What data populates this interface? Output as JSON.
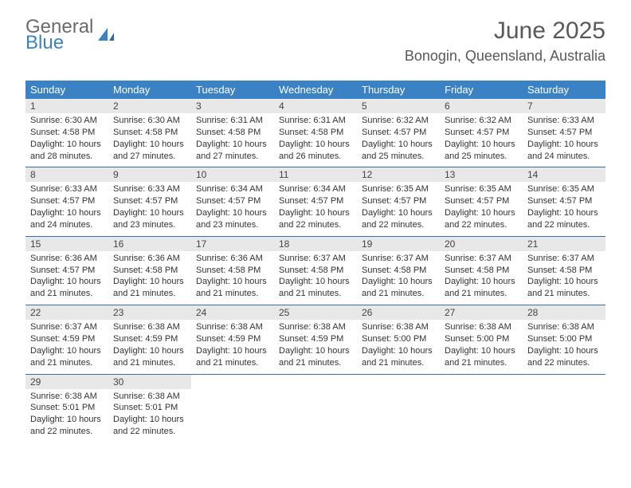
{
  "brand": {
    "part1": "General",
    "part2": "Blue"
  },
  "colors": {
    "header_bg": "#3b82c4",
    "header_text": "#ffffff",
    "daynum_bg": "#e8e8e8",
    "week_border": "#3b6ea5",
    "text": "#333333",
    "title_text": "#595959"
  },
  "title": {
    "month": "June 2025",
    "location": "Bonogin, Queensland, Australia"
  },
  "weekdays": [
    "Sunday",
    "Monday",
    "Tuesday",
    "Wednesday",
    "Thursday",
    "Friday",
    "Saturday"
  ],
  "days": [
    {
      "n": "1",
      "sr": "6:30 AM",
      "ss": "4:58 PM",
      "dl": "10 hours and 28 minutes."
    },
    {
      "n": "2",
      "sr": "6:30 AM",
      "ss": "4:58 PM",
      "dl": "10 hours and 27 minutes."
    },
    {
      "n": "3",
      "sr": "6:31 AM",
      "ss": "4:58 PM",
      "dl": "10 hours and 27 minutes."
    },
    {
      "n": "4",
      "sr": "6:31 AM",
      "ss": "4:58 PM",
      "dl": "10 hours and 26 minutes."
    },
    {
      "n": "5",
      "sr": "6:32 AM",
      "ss": "4:57 PM",
      "dl": "10 hours and 25 minutes."
    },
    {
      "n": "6",
      "sr": "6:32 AM",
      "ss": "4:57 PM",
      "dl": "10 hours and 25 minutes."
    },
    {
      "n": "7",
      "sr": "6:33 AM",
      "ss": "4:57 PM",
      "dl": "10 hours and 24 minutes."
    },
    {
      "n": "8",
      "sr": "6:33 AM",
      "ss": "4:57 PM",
      "dl": "10 hours and 24 minutes."
    },
    {
      "n": "9",
      "sr": "6:33 AM",
      "ss": "4:57 PM",
      "dl": "10 hours and 23 minutes."
    },
    {
      "n": "10",
      "sr": "6:34 AM",
      "ss": "4:57 PM",
      "dl": "10 hours and 23 minutes."
    },
    {
      "n": "11",
      "sr": "6:34 AM",
      "ss": "4:57 PM",
      "dl": "10 hours and 22 minutes."
    },
    {
      "n": "12",
      "sr": "6:35 AM",
      "ss": "4:57 PM",
      "dl": "10 hours and 22 minutes."
    },
    {
      "n": "13",
      "sr": "6:35 AM",
      "ss": "4:57 PM",
      "dl": "10 hours and 22 minutes."
    },
    {
      "n": "14",
      "sr": "6:35 AM",
      "ss": "4:57 PM",
      "dl": "10 hours and 22 minutes."
    },
    {
      "n": "15",
      "sr": "6:36 AM",
      "ss": "4:57 PM",
      "dl": "10 hours and 21 minutes."
    },
    {
      "n": "16",
      "sr": "6:36 AM",
      "ss": "4:58 PM",
      "dl": "10 hours and 21 minutes."
    },
    {
      "n": "17",
      "sr": "6:36 AM",
      "ss": "4:58 PM",
      "dl": "10 hours and 21 minutes."
    },
    {
      "n": "18",
      "sr": "6:37 AM",
      "ss": "4:58 PM",
      "dl": "10 hours and 21 minutes."
    },
    {
      "n": "19",
      "sr": "6:37 AM",
      "ss": "4:58 PM",
      "dl": "10 hours and 21 minutes."
    },
    {
      "n": "20",
      "sr": "6:37 AM",
      "ss": "4:58 PM",
      "dl": "10 hours and 21 minutes."
    },
    {
      "n": "21",
      "sr": "6:37 AM",
      "ss": "4:58 PM",
      "dl": "10 hours and 21 minutes."
    },
    {
      "n": "22",
      "sr": "6:37 AM",
      "ss": "4:59 PM",
      "dl": "10 hours and 21 minutes."
    },
    {
      "n": "23",
      "sr": "6:38 AM",
      "ss": "4:59 PM",
      "dl": "10 hours and 21 minutes."
    },
    {
      "n": "24",
      "sr": "6:38 AM",
      "ss": "4:59 PM",
      "dl": "10 hours and 21 minutes."
    },
    {
      "n": "25",
      "sr": "6:38 AM",
      "ss": "4:59 PM",
      "dl": "10 hours and 21 minutes."
    },
    {
      "n": "26",
      "sr": "6:38 AM",
      "ss": "5:00 PM",
      "dl": "10 hours and 21 minutes."
    },
    {
      "n": "27",
      "sr": "6:38 AM",
      "ss": "5:00 PM",
      "dl": "10 hours and 21 minutes."
    },
    {
      "n": "28",
      "sr": "6:38 AM",
      "ss": "5:00 PM",
      "dl": "10 hours and 22 minutes."
    },
    {
      "n": "29",
      "sr": "6:38 AM",
      "ss": "5:01 PM",
      "dl": "10 hours and 22 minutes."
    },
    {
      "n": "30",
      "sr": "6:38 AM",
      "ss": "5:01 PM",
      "dl": "10 hours and 22 minutes."
    }
  ],
  "labels": {
    "sunrise": "Sunrise:",
    "sunset": "Sunset:",
    "daylight": "Daylight:"
  }
}
